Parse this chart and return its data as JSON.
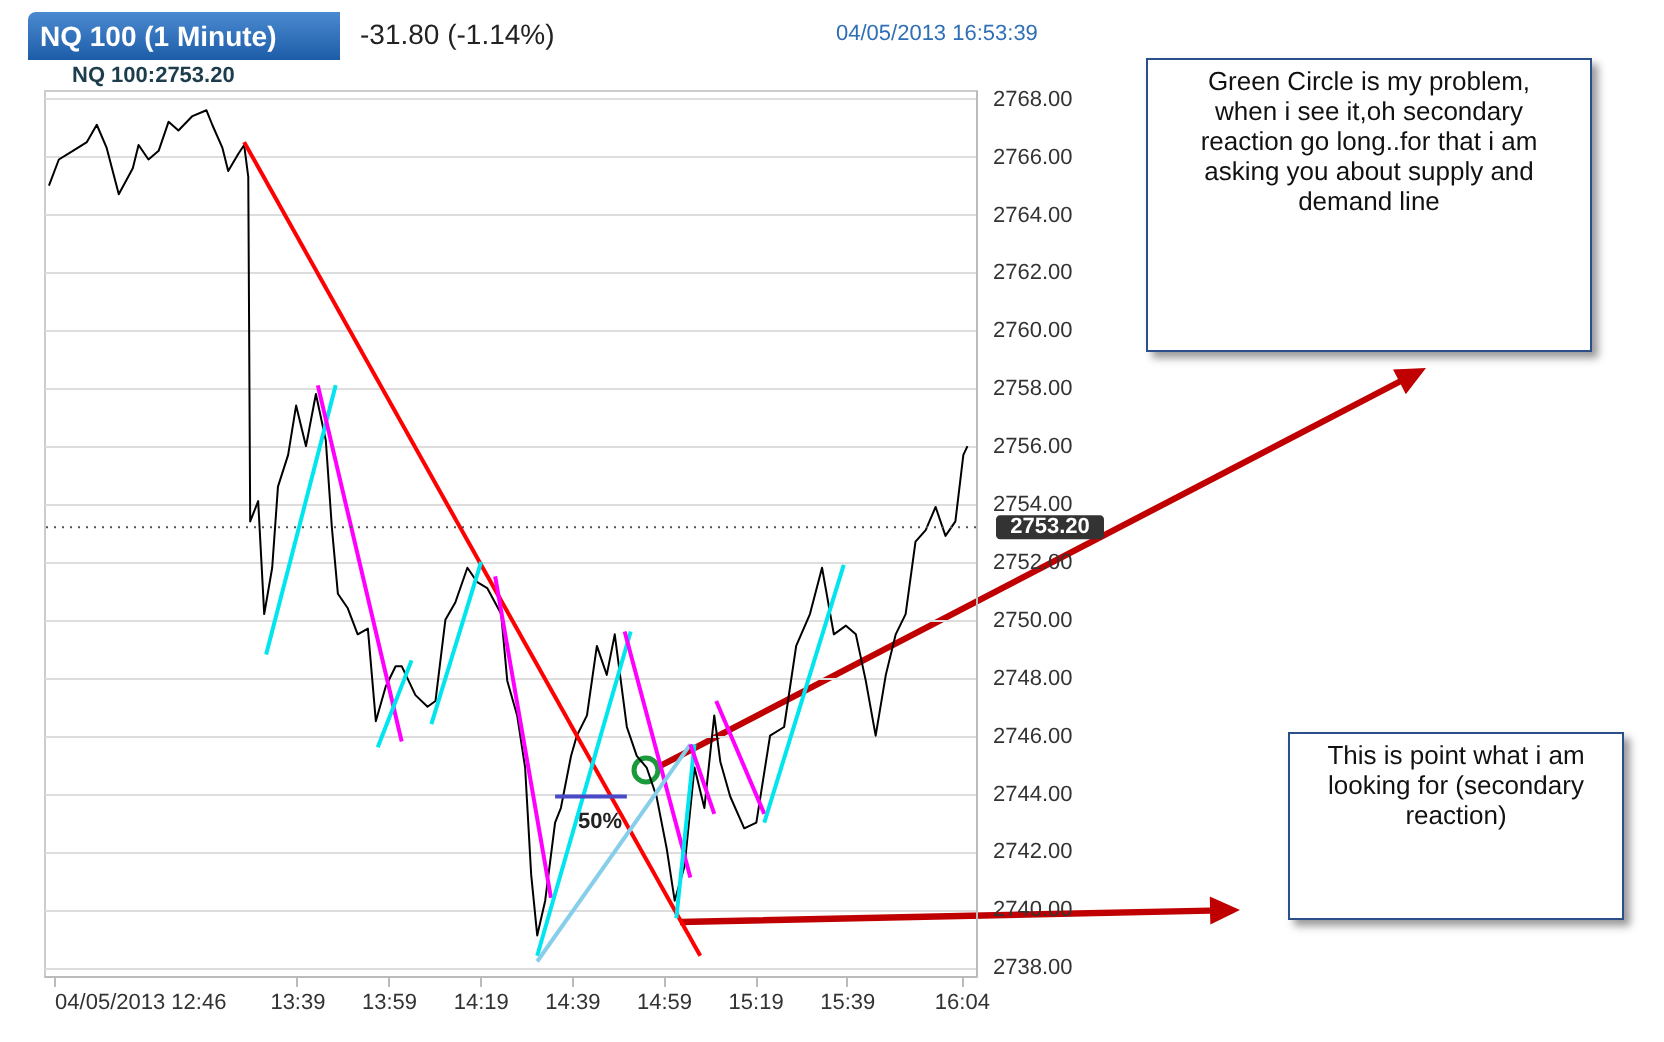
{
  "chart_data": {
    "type": "line",
    "title": "NQ 100 (1 Minute)",
    "subtitle": "-31.80 (-1.14%)",
    "annotations": [
      "04/05/2013 16:53:39",
      "NQ 100:2753.20",
      "50%",
      "Green Circle is my problem, when i see it,oh secondary reaction go long..for that i am asking you about supply  and demand line",
      "This is point what i am looking for (secondary reaction)"
    ],
    "xlim": [
      12.73,
      16.12
    ],
    "xticks": [
      {
        "value": 12.7667,
        "label": "04/05/2013 12:46"
      },
      {
        "value": 13.65,
        "label": "13:39"
      },
      {
        "value": 13.9833,
        "label": "13:59"
      },
      {
        "value": 14.3167,
        "label": "14:19"
      },
      {
        "value": 14.65,
        "label": "14:39"
      },
      {
        "value": 14.9833,
        "label": "14:59"
      },
      {
        "value": 15.3167,
        "label": "15:19"
      },
      {
        "value": 15.65,
        "label": "15:39"
      },
      {
        "value": 16.0667,
        "label": "16:04"
      }
    ],
    "ylim": [
      2737.7,
      2768.3
    ],
    "yticks": [
      {
        "value": 2738,
        "label": "2738.00"
      },
      {
        "value": 2740,
        "label": "2740.00"
      },
      {
        "value": 2742,
        "label": "2742.00"
      },
      {
        "value": 2744,
        "label": "2744.00"
      },
      {
        "value": 2746,
        "label": "2746.00"
      },
      {
        "value": 2748,
        "label": "2748.00"
      },
      {
        "value": 2750,
        "label": "2750.00"
      },
      {
        "value": 2752,
        "label": "2752.00"
      },
      {
        "value": 2754,
        "label": "2754.00"
      },
      {
        "value": 2756,
        "label": "2756.00"
      },
      {
        "value": 2758,
        "label": "2758.00"
      },
      {
        "value": 2760,
        "label": "2760.00"
      },
      {
        "value": 2762,
        "label": "2762.00"
      },
      {
        "value": 2764,
        "label": "2764.00"
      },
      {
        "value": 2766,
        "label": "2766.00"
      },
      {
        "value": 2768,
        "label": "2768.00"
      }
    ],
    "grid": "y",
    "ref_lines": [
      {
        "axis": "y",
        "value": 2753.2,
        "label": "2753.20",
        "color": "#555555",
        "line_style": "dotted"
      }
    ],
    "series": [
      {
        "color": "#000000",
        "x": [
          12.748,
          12.784,
          12.835,
          12.886,
          12.922,
          12.958,
          13.002,
          13.053,
          13.074,
          13.11,
          13.147,
          13.183,
          13.219,
          13.27,
          13.321,
          13.342,
          13.379,
          13.4,
          13.437,
          13.458,
          13.473,
          13.48,
          13.509,
          13.531,
          13.56,
          13.581,
          13.618,
          13.647,
          13.683,
          13.719,
          13.755,
          13.777,
          13.799,
          13.835,
          13.871,
          13.908,
          13.937,
          13.973,
          14.009,
          14.031,
          14.081,
          14.125,
          14.154,
          14.19,
          14.226,
          14.27,
          14.306,
          14.342,
          14.393,
          14.415,
          14.451,
          14.48,
          14.502,
          14.524,
          14.553,
          14.589,
          14.61,
          14.647,
          14.668,
          14.705,
          14.741,
          14.777,
          14.806,
          14.85,
          14.886,
          14.922,
          14.958,
          14.995,
          15.024,
          15.06,
          15.096,
          15.132,
          15.168,
          15.19,
          15.226,
          15.277,
          15.321,
          15.371,
          15.422,
          15.466,
          15.516,
          15.56,
          15.603,
          15.647,
          15.683,
          15.719,
          15.755,
          15.792,
          15.828,
          15.864,
          15.9,
          15.937,
          15.973,
          16.009,
          16.045,
          16.074,
          16.089
        ],
        "values": [
          2765.0,
          2765.9,
          2766.2,
          2766.5,
          2767.1,
          2766.3,
          2764.7,
          2765.6,
          2766.4,
          2765.9,
          2766.2,
          2767.2,
          2766.9,
          2767.4,
          2767.6,
          2767.1,
          2766.3,
          2765.5,
          2766.1,
          2766.4,
          2765.3,
          2753.4,
          2754.1,
          2750.2,
          2751.8,
          2754.6,
          2755.7,
          2757.4,
          2756.0,
          2757.8,
          2756.2,
          2753.2,
          2750.9,
          2750.4,
          2749.5,
          2749.7,
          2746.5,
          2747.7,
          2748.4,
          2748.4,
          2747.4,
          2747.0,
          2747.2,
          2750.0,
          2750.6,
          2751.8,
          2751.3,
          2751.1,
          2750.2,
          2747.9,
          2746.7,
          2744.9,
          2741.2,
          2739.1,
          2740.3,
          2743.0,
          2743.5,
          2745.3,
          2746.0,
          2746.7,
          2749.1,
          2748.1,
          2749.5,
          2746.3,
          2745.3,
          2744.9,
          2743.9,
          2742.1,
          2740.3,
          2741.5,
          2744.9,
          2743.5,
          2746.7,
          2745.1,
          2743.9,
          2742.8,
          2743.0,
          2746.0,
          2746.3,
          2749.1,
          2750.2,
          2751.8,
          2749.5,
          2749.8,
          2749.5,
          2747.9,
          2746.0,
          2748.1,
          2749.5,
          2750.2,
          2752.7,
          2753.1,
          2753.9,
          2752.9,
          2753.4,
          2755.7,
          2756.0
        ]
      },
      {
        "type": "line",
        "color": "#ff0000",
        "x": [
          13.458,
          15.117
        ],
        "values": [
          2766.5,
          2738.4
        ]
      },
      {
        "type": "line",
        "color": "#00e5ee",
        "x": [
          13.538,
          13.791
        ],
        "values": [
          2748.8,
          2758.1
        ]
      },
      {
        "type": "line",
        "color": "#ff00ff",
        "x": [
          13.726,
          14.031
        ],
        "values": [
          2758.1,
          2745.8
        ]
      },
      {
        "type": "line",
        "color": "#00e5ee",
        "x": [
          13.944,
          14.067
        ],
        "values": [
          2745.6,
          2748.6
        ]
      },
      {
        "type": "line",
        "color": "#00e5ee",
        "x": [
          14.139,
          14.32
        ],
        "values": [
          2746.4,
          2752.0
        ]
      },
      {
        "type": "line",
        "color": "#ff00ff",
        "x": [
          14.371,
          14.574
        ],
        "values": [
          2751.5,
          2740.4
        ]
      },
      {
        "type": "line",
        "color": "#00e5ee",
        "x": [
          14.524,
          14.864
        ],
        "values": [
          2738.4,
          2749.6
        ]
      },
      {
        "type": "line",
        "color": "#ff00ff",
        "x": [
          14.842,
          15.081
        ],
        "values": [
          2749.6,
          2741.1
        ]
      },
      {
        "type": "line",
        "color": "#87ceeb",
        "x": [
          14.524,
          15.081
        ],
        "values": [
          2738.2,
          2745.7
        ]
      },
      {
        "type": "line",
        "color": "#00e5ee",
        "x": [
          15.03,
          15.096
        ],
        "values": [
          2739.7,
          2745.7
        ]
      },
      {
        "type": "line",
        "color": "#ff00ff",
        "x": [
          15.081,
          15.168
        ],
        "values": [
          2745.7,
          2743.3
        ]
      },
      {
        "type": "line",
        "color": "#ff00ff",
        "x": [
          15.175,
          15.35
        ],
        "values": [
          2747.2,
          2743.3
        ]
      },
      {
        "type": "line",
        "color": "#00e5ee",
        "x": [
          15.35,
          15.639
        ],
        "values": [
          2743.0,
          2751.9
        ]
      },
      {
        "type": "line",
        "color": "#4a4ac8",
        "x": [
          14.589,
          14.85
        ],
        "values": [
          2743.9,
          2743.9
        ]
      }
    ]
  }
}
